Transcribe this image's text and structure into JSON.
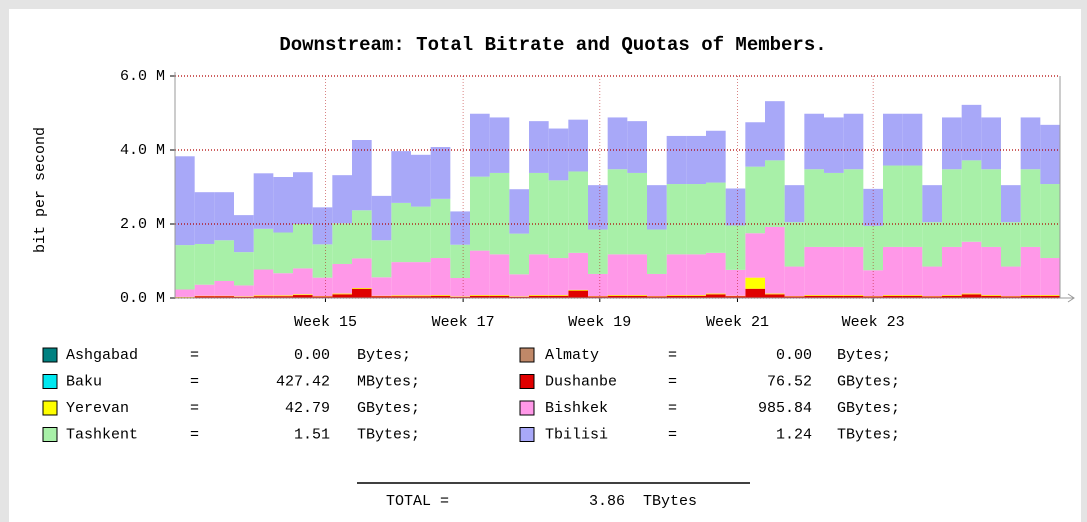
{
  "chart_data": {
    "type": "stacked-step",
    "title": "Downstream: Total Bitrate and Quotas of Members.",
    "y_label": "bit per second",
    "x": [
      0,
      2,
      4,
      6,
      8,
      10,
      12,
      14,
      16,
      18,
      20,
      22,
      24,
      26,
      28,
      30,
      32,
      34,
      36,
      38,
      40,
      42,
      44,
      46,
      48,
      50,
      52,
      54,
      56,
      58,
      60,
      62,
      64,
      66,
      68,
      70,
      72,
      74,
      76,
      78,
      80,
      82,
      84,
      86,
      88
    ],
    "xlim": [
      0,
      90
    ],
    "xticks": [
      {
        "value": 15.3,
        "label": "Week 15"
      },
      {
        "value": 29.3,
        "label": "Week 17"
      },
      {
        "value": 43.2,
        "label": "Week 19"
      },
      {
        "value": 57.2,
        "label": "Week 21"
      },
      {
        "value": 71,
        "label": "Week 23"
      }
    ],
    "ylim": [
      0,
      6000000.0
    ],
    "yticks": [
      {
        "value": 0,
        "label": "0.0 M"
      },
      {
        "value": 2000000.0,
        "label": "2.0 M"
      },
      {
        "value": 4000000.0,
        "label": "4.0 M"
      },
      {
        "value": 6000000.0,
        "label": "6.0 M"
      }
    ],
    "grid": true,
    "legend_separator": "=",
    "series": [
      {
        "name": "Ashgabad",
        "color": "#008080",
        "amount": "0.00",
        "unit": "Bytes;",
        "values": [
          0,
          0,
          0,
          0,
          0,
          0,
          0,
          0,
          0,
          0,
          0,
          0,
          0,
          0,
          0,
          0,
          0,
          0,
          0,
          0,
          0,
          0,
          0,
          0,
          0,
          0,
          0,
          0,
          0,
          0,
          0,
          0,
          0,
          0,
          0,
          0,
          0,
          0,
          0,
          0,
          0,
          0,
          0,
          0,
          0
        ]
      },
      {
        "name": "Baku",
        "color": "#00e8f0",
        "amount": "427.42",
        "unit": "MBytes;",
        "values": [
          0,
          0,
          0,
          0,
          0,
          0,
          0,
          0,
          0,
          0,
          0,
          0,
          0,
          0,
          0,
          0,
          0,
          0,
          0,
          0,
          0,
          0,
          0,
          0,
          0,
          0,
          0,
          0,
          0,
          0,
          0,
          0,
          0,
          0,
          0,
          0,
          0,
          0,
          0,
          0,
          0,
          0,
          0,
          0,
          0
        ]
      },
      {
        "name": "Almaty",
        "color": "#c08868",
        "amount": "0.00",
        "unit": "Bytes;",
        "values": [
          0,
          0,
          0,
          0,
          0,
          0,
          0,
          0,
          0,
          0,
          0,
          0,
          0,
          0,
          0,
          0,
          0,
          0,
          0,
          0,
          0,
          0,
          0,
          0,
          0,
          0,
          0,
          0,
          0,
          0,
          0,
          0,
          0,
          0,
          0,
          0,
          0,
          0,
          0,
          0,
          0,
          0,
          0,
          0,
          0
        ]
      },
      {
        "name": "Dushanbe",
        "color": "#e00000",
        "amount": "76.52",
        "unit": "GBytes;",
        "values": [
          20000.0,
          50000.0,
          50000.0,
          30000.0,
          50000.0,
          50000.0,
          80000.0,
          40000.0,
          100000.0,
          250000.0,
          50000.0,
          50000.0,
          50000.0,
          60000.0,
          30000.0,
          60000.0,
          60000.0,
          30000.0,
          60000.0,
          60000.0,
          200000.0,
          40000.0,
          60000.0,
          60000.0,
          40000.0,
          60000.0,
          60000.0,
          100000.0,
          50000.0,
          250000.0,
          100000.0,
          40000.0,
          60000.0,
          60000.0,
          60000.0,
          40000.0,
          60000.0,
          60000.0,
          40000.0,
          60000.0,
          100000.0,
          60000.0,
          40000.0,
          60000.0,
          60000.0
        ]
      },
      {
        "name": "Yerevan",
        "color": "#ffff00",
        "amount": "42.79",
        "unit": "GBytes;",
        "values": [
          10000.0,
          10000.0,
          10000.0,
          10000.0,
          20000.0,
          20000.0,
          20000.0,
          10000.0,
          20000.0,
          20000.0,
          10000.0,
          20000.0,
          20000.0,
          20000.0,
          10000.0,
          20000.0,
          20000.0,
          10000.0,
          20000.0,
          20000.0,
          20000.0,
          10000.0,
          20000.0,
          20000.0,
          10000.0,
          20000.0,
          20000.0,
          20000.0,
          10000.0,
          300000.0,
          20000.0,
          10000.0,
          20000.0,
          20000.0,
          20000.0,
          10000.0,
          20000.0,
          20000.0,
          10000.0,
          20000.0,
          20000.0,
          20000.0,
          10000.0,
          20000.0,
          20000.0
        ]
      },
      {
        "name": "Bishkek",
        "color": "#ff98e8",
        "amount": "985.84",
        "unit": "GBytes;",
        "values": [
          200000.0,
          300000.0,
          400000.0,
          300000.0,
          700000.0,
          600000.0,
          700000.0,
          500000.0,
          800000.0,
          800000.0,
          500000.0,
          900000.0,
          900000.0,
          1000000.0,
          500000.0,
          1200000.0,
          1100000.0,
          600000.0,
          1100000.0,
          1000000.0,
          1000000.0,
          600000.0,
          1100000.0,
          1100000.0,
          600000.0,
          1100000.0,
          1100000.0,
          1100000.0,
          700000.0,
          1200000.0,
          1800000.0,
          800000.0,
          1300000.0,
          1300000.0,
          1300000.0,
          700000.0,
          1300000.0,
          1300000.0,
          800000.0,
          1300000.0,
          1400000.0,
          1300000.0,
          800000.0,
          1300000.0,
          1000000.0
        ]
      },
      {
        "name": "Tashkent",
        "color": "#a8f0a8",
        "amount": "1.51",
        "unit": "TBytes;",
        "values": [
          1200000.0,
          1100000.0,
          1100000.0,
          900000.0,
          1100000.0,
          1100000.0,
          1200000.0,
          900000.0,
          1100000.0,
          1300000.0,
          1000000.0,
          1600000.0,
          1500000.0,
          1600000.0,
          900000.0,
          2000000.0,
          2200000.0,
          1100000.0,
          2200000.0,
          2100000.0,
          2200000.0,
          1200000.0,
          2300000.0,
          2200000.0,
          1200000.0,
          1900000.0,
          1900000.0,
          1900000.0,
          1200000.0,
          1800000.0,
          1800000.0,
          1200000.0,
          2100000.0,
          2000000.0,
          2100000.0,
          1200000.0,
          2200000.0,
          2200000.0,
          1200000.0,
          2100000.0,
          2200000.0,
          2100000.0,
          1200000.0,
          2100000.0,
          2000000.0
        ]
      },
      {
        "name": "Tbilisi",
        "color": "#a8a8f8",
        "amount": "1.24",
        "unit": "TBytes;",
        "values": [
          2400000.0,
          1400000.0,
          1300000.0,
          1000000.0,
          1500000.0,
          1500000.0,
          1400000.0,
          1000000.0,
          1300000.0,
          1900000.0,
          1200000.0,
          1400000.0,
          1400000.0,
          1400000.0,
          900000.0,
          1700000.0,
          1500000.0,
          1200000.0,
          1400000.0,
          1400000.0,
          1400000.0,
          1200000.0,
          1400000.0,
          1400000.0,
          1200000.0,
          1300000.0,
          1300000.0,
          1400000.0,
          1000000.0,
          1200000.0,
          1600000.0,
          1000000.0,
          1500000.0,
          1500000.0,
          1500000.0,
          1000000.0,
          1400000.0,
          1400000.0,
          1000000.0,
          1400000.0,
          1500000.0,
          1400000.0,
          1000000.0,
          1400000.0,
          1600000.0
        ]
      }
    ],
    "total_label": "TOTAL =",
    "total_amount": "3.86",
    "total_unit": "TBytes"
  }
}
